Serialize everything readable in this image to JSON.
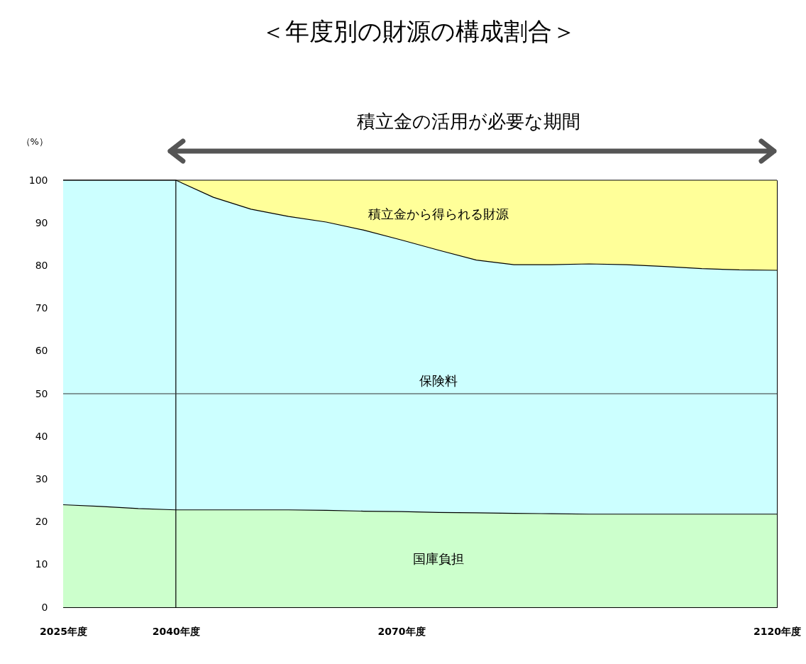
{
  "chart_data": {
    "type": "area",
    "title": "＜年度別の財源の構成割合＞",
    "ylabel": "（%）",
    "annotations": [
      "積立金の活用が必要な期間"
    ],
    "x": [
      2025,
      2030,
      2035,
      2040,
      2045,
      2050,
      2055,
      2060,
      2065,
      2070,
      2075,
      2080,
      2085,
      2090,
      2095,
      2100,
      2105,
      2110,
      2115,
      2120
    ],
    "stacked": true,
    "series": [
      {
        "name": "国庫負担",
        "color": "#ccffcc",
        "values": [
          24,
          23.6,
          23.1,
          22.8,
          22.8,
          22.8,
          22.8,
          22.7,
          22.5,
          22.4,
          22.2,
          22.1,
          22.0,
          21.9,
          21.8,
          21.8,
          21.8,
          21.8,
          21.8,
          21.8
        ]
      },
      {
        "name": "保険料",
        "color": "#ccffff",
        "values": [
          76,
          76.4,
          76.9,
          77.2,
          73.2,
          70.4,
          68.7,
          67.5,
          65.8,
          63.6,
          61.4,
          59.2,
          58.2,
          58.3,
          58.6,
          58.4,
          58.0,
          57.5,
          57.2,
          57.1
        ]
      },
      {
        "name": "積立金から得られる財源",
        "color": "#ffff99",
        "values": [
          0,
          0,
          0,
          0,
          4,
          6.8,
          8.5,
          9.8,
          11.7,
          14,
          16.4,
          18.7,
          19.8,
          19.8,
          19.6,
          19.8,
          20.2,
          20.7,
          21,
          21.1
        ]
      }
    ],
    "xlim": [
      2025,
      2120
    ],
    "xticks": [
      {
        "value": 2025,
        "label": "2025年度"
      },
      {
        "value": 2030,
        "label": null
      },
      {
        "value": 2035,
        "label": null
      },
      {
        "value": 2040,
        "label": "2040年度"
      },
      {
        "value": 2045,
        "label": null
      },
      {
        "value": 2050,
        "label": null
      },
      {
        "value": 2055,
        "label": null
      },
      {
        "value": 2060,
        "label": null
      },
      {
        "value": 2065,
        "label": null
      },
      {
        "value": 2070,
        "label": "2070年度"
      },
      {
        "value": 2075,
        "label": null
      },
      {
        "value": 2080,
        "label": null
      },
      {
        "value": 2085,
        "label": null
      },
      {
        "value": 2090,
        "label": null
      },
      {
        "value": 2095,
        "label": null
      },
      {
        "value": 2100,
        "label": null
      },
      {
        "value": 2105,
        "label": null
      },
      {
        "value": 2110,
        "label": null
      },
      {
        "value": 2115,
        "label": null
      },
      {
        "value": 2120,
        "label": "2120年度"
      }
    ],
    "ylim": [
      0,
      100
    ],
    "yticks": [
      0,
      10,
      20,
      30,
      40,
      50,
      60,
      70,
      80,
      90,
      100
    ],
    "ref_lines": [
      {
        "axis": "x",
        "value": 2040,
        "color": "#000000"
      },
      {
        "axis": "y",
        "value": 50,
        "color": "#333333"
      }
    ],
    "grid": false,
    "legend": false
  }
}
